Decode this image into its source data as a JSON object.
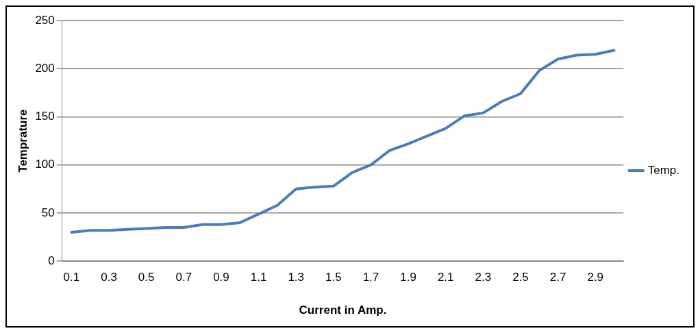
{
  "chart_data": {
    "type": "line",
    "xlabel": "Current in Amp.",
    "ylabel": "Temprature",
    "categories": [
      "0.1",
      null,
      "0.3",
      null,
      "0.5",
      null,
      "0.7",
      null,
      "0.9",
      null,
      "1.1",
      null,
      "1.3",
      null,
      "1.5",
      null,
      "1.7",
      null,
      "1.9",
      null,
      "2.1",
      null,
      "2.3",
      null,
      "2.5",
      null,
      "2.7",
      null,
      "2.9",
      null
    ],
    "series": [
      {
        "name": "Temp.",
        "color": "#4a7ebb",
        "values": [
          30,
          32,
          32,
          33,
          34,
          35,
          35,
          38,
          38,
          40,
          49,
          58,
          75,
          77,
          78,
          92,
          100,
          115,
          122,
          130,
          138,
          151,
          154,
          166,
          174,
          198,
          210,
          214,
          215,
          219
        ]
      }
    ],
    "ylim": [
      0,
      250
    ],
    "yticks": [
      0,
      50,
      100,
      150,
      200,
      250
    ],
    "grid": "y",
    "legend": "right",
    "marker": "none",
    "line_style": "solid"
  }
}
